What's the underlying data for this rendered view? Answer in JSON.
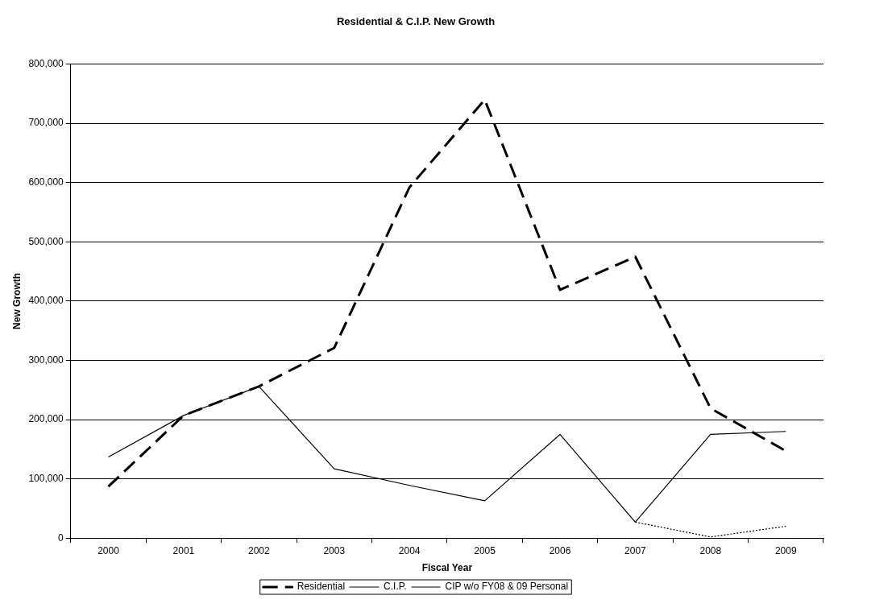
{
  "chart_data": {
    "type": "line",
    "title": "Residential & C.I.P. New Growth",
    "xlabel": "Fiscal Year",
    "ylabel": "New Growth",
    "categories": [
      "2000",
      "2001",
      "2002",
      "2003",
      "2004",
      "2005",
      "2006",
      "2007",
      "2008",
      "2009"
    ],
    "series": [
      {
        "name": "Residential",
        "color": "#000000",
        "line_style": "dashed",
        "values": [
          87000,
          207000,
          256000,
          321000,
          592000,
          740000,
          419000,
          475000,
          219000,
          147000
        ]
      },
      {
        "name": "C.I.P.",
        "color": "#000000",
        "line_style": "solid",
        "values": [
          137000,
          207000,
          256000,
          117000,
          89000,
          63000,
          175000,
          27000,
          175000,
          180000
        ]
      },
      {
        "name": "CIP w/o FY08 & 09 Personal",
        "color": "#000000",
        "line_style": "dotted",
        "values": [
          null,
          null,
          null,
          null,
          null,
          null,
          null,
          27000,
          2000,
          20000
        ]
      }
    ],
    "ylim": [
      0,
      800000
    ],
    "yticks": [
      0,
      {
        "value": 100000,
        "label": "100,000"
      },
      {
        "value": 200000,
        "label": "200,000"
      },
      {
        "value": 300000,
        "label": "300,000"
      },
      {
        "value": 400000,
        "label": "400,000"
      },
      {
        "value": 500000,
        "label": "500,000"
      },
      {
        "value": 600000,
        "label": "600,000"
      },
      {
        "value": 700000,
        "label": "700,000"
      },
      {
        "value": 800000,
        "label": "800,000"
      }
    ],
    "grid": "y",
    "legend": "bottom",
    "marker": "none"
  }
}
